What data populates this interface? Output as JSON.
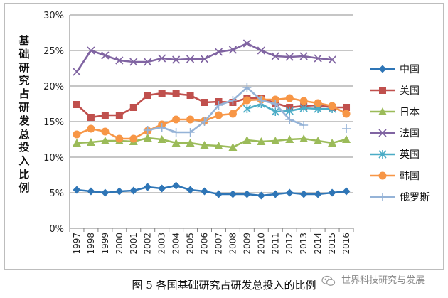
{
  "chart_data": {
    "type": "line",
    "title": "",
    "ylabel": "基础研究占研发总投入比例",
    "xlabel": "",
    "ylim": [
      0,
      30
    ],
    "yticks": [
      "0%",
      "5%",
      "10%",
      "15%",
      "20%",
      "25%",
      "30%"
    ],
    "ytick_values": [
      0,
      5,
      10,
      15,
      20,
      25,
      30
    ],
    "categories": [
      "1997",
      "1998",
      "1999",
      "2000",
      "2001",
      "2002",
      "2003",
      "2004",
      "2005",
      "2006",
      "2007",
      "2008",
      "2009",
      "2010",
      "2011",
      "2012",
      "2013",
      "2014",
      "2015",
      "2016"
    ],
    "grid": true,
    "legend_position": "right",
    "series": [
      {
        "name": "中国",
        "color": "#2e75b6",
        "marker": "diamond",
        "values": [
          5.4,
          5.2,
          5.0,
          5.2,
          5.3,
          5.8,
          5.6,
          6.0,
          5.4,
          5.2,
          4.8,
          4.8,
          4.8,
          4.6,
          4.8,
          5.0,
          4.8,
          4.8,
          5.0,
          5.2
        ]
      },
      {
        "name": "美国",
        "color": "#c0504d",
        "marker": "square",
        "values": [
          17.4,
          15.6,
          15.9,
          15.9,
          17.0,
          18.7,
          19.0,
          18.9,
          18.7,
          17.7,
          17.8,
          17.7,
          18.3,
          18.3,
          17.6,
          17.0,
          17.2,
          17.3,
          17.0,
          17.0
        ]
      },
      {
        "name": "日本",
        "color": "#9bbb59",
        "marker": "triangle",
        "values": [
          12.0,
          12.1,
          12.3,
          12.3,
          12.2,
          12.7,
          12.5,
          12.0,
          12.0,
          11.7,
          11.6,
          11.4,
          12.4,
          12.2,
          12.3,
          12.5,
          12.6,
          12.3,
          12.0,
          12.5
        ]
      },
      {
        "name": "法国",
        "color": "#8064a2",
        "marker": "x",
        "values": [
          22.0,
          25.0,
          24.3,
          23.6,
          23.4,
          23.4,
          23.9,
          23.7,
          23.8,
          23.8,
          24.8,
          25.1,
          26.0,
          25.0,
          24.2,
          24.1,
          24.2,
          23.9,
          23.7,
          null
        ]
      },
      {
        "name": "英国",
        "color": "#4bacc6",
        "marker": "star",
        "values": [
          null,
          null,
          null,
          null,
          null,
          null,
          null,
          null,
          null,
          null,
          null,
          null,
          16.8,
          17.5,
          16.4,
          16.5,
          16.9,
          16.8,
          16.8,
          null
        ]
      },
      {
        "name": "韩国",
        "color": "#f79646",
        "marker": "circle",
        "values": [
          13.2,
          14.0,
          13.6,
          12.6,
          12.6,
          13.7,
          14.6,
          15.3,
          15.3,
          15.1,
          15.9,
          16.1,
          18.0,
          18.1,
          18.1,
          18.3,
          17.9,
          17.6,
          17.2,
          16.1
        ]
      },
      {
        "name": "俄罗斯",
        "color": "#95b3d7",
        "marker": "plus",
        "values": [
          null,
          null,
          null,
          null,
          null,
          13.8,
          14.2,
          13.5,
          13.5,
          15.0,
          17.3,
          18.0,
          19.8,
          18.0,
          17.5,
          15.3,
          14.5,
          null,
          null,
          14.0
        ]
      }
    ]
  },
  "caption": "图 5  各国基础研究占研发总投入的比例",
  "watermark": "世界科技研究与发展"
}
